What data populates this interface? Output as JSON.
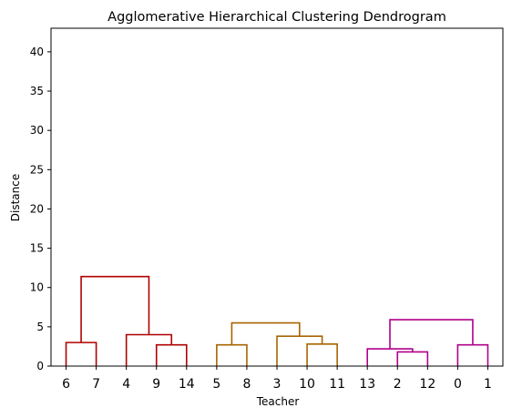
{
  "chart_data": {
    "type": "dendrogram",
    "title": "Agglomerative Hierarchical Clustering Dendrogram",
    "xlabel": "Teacher",
    "ylabel": "Distance",
    "ylim": [
      0,
      43
    ],
    "yticks": [
      0,
      5,
      10,
      15,
      20,
      25,
      30,
      35,
      40
    ],
    "leaves": [
      "6",
      "7",
      "4",
      "9",
      "14",
      "5",
      "8",
      "3",
      "10",
      "11",
      "13",
      "2",
      "12",
      "0",
      "1"
    ],
    "grid": false,
    "merges": [
      {
        "cluster": "red",
        "left": 0,
        "right": 1,
        "height": 3.0
      },
      {
        "cluster": "red",
        "left": 3,
        "right": 4,
        "height": 2.7
      },
      {
        "cluster": "red",
        "left": 2,
        "right": 3.5,
        "height": 4.0
      },
      {
        "cluster": "red",
        "left": 0.5,
        "right": 2.75,
        "height": 11.4
      },
      {
        "cluster": "orange",
        "left": 5,
        "right": 6,
        "height": 2.7
      },
      {
        "cluster": "orange",
        "left": 8,
        "right": 9,
        "height": 2.8
      },
      {
        "cluster": "orange",
        "left": 7,
        "right": 8.5,
        "height": 3.8
      },
      {
        "cluster": "orange",
        "left": 5.5,
        "right": 7.75,
        "height": 5.5
      },
      {
        "cluster": "magenta",
        "left": 11,
        "right": 12,
        "height": 1.8
      },
      {
        "cluster": "magenta",
        "left": 10,
        "right": 11.5,
        "height": 2.2
      },
      {
        "cluster": "magenta",
        "left": 13,
        "right": 14,
        "height": 2.7
      },
      {
        "cluster": "magenta",
        "left": 10.75,
        "right": 13.5,
        "height": 5.9
      }
    ],
    "colors": {
      "red": "#b00000",
      "orange": "#a86400",
      "magenta": "#b0008a"
    }
  }
}
